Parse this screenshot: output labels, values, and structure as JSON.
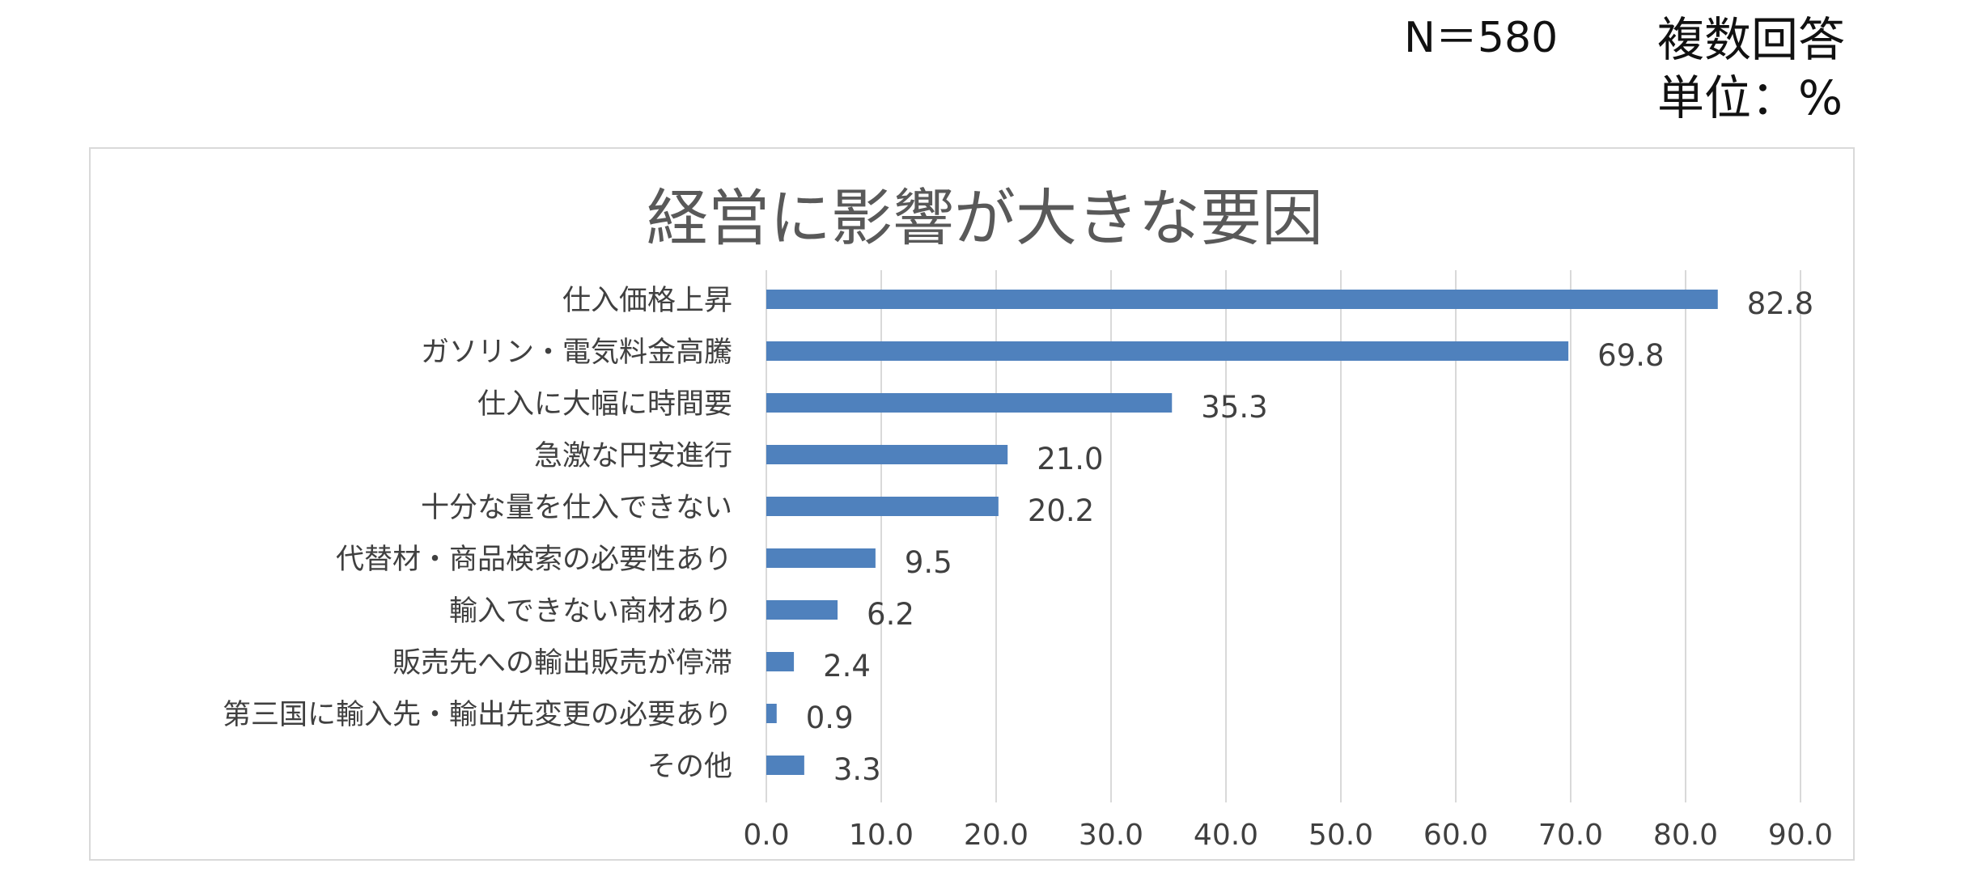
{
  "header": {
    "sample_size": "N＝580",
    "answer_type": "複数回答",
    "unit": "単位：%"
  },
  "colors": {
    "bar": "#4f81bd",
    "grid": "#d9d9d9",
    "text": "#404040"
  },
  "chart_data": {
    "type": "bar",
    "orientation": "horizontal",
    "title": "経営に影響が大きな要因",
    "categories": [
      "仕入価格上昇",
      "ガソリン・電気料金高騰",
      "仕入に大幅に時間要",
      "急激な円安進行",
      "十分な量を仕入できない",
      "代替材・商品検索の必要性あり",
      "輸入できない商材あり",
      "販売先への輸出販売が停滞",
      "第三国に輸入先・輸出先変更の必要あり",
      "その他"
    ],
    "values": [
      82.8,
      69.8,
      35.3,
      21.0,
      20.2,
      9.5,
      6.2,
      2.4,
      0.9,
      3.3
    ],
    "value_labels": [
      "82.8",
      "69.8",
      "35.3",
      "21.0",
      "20.2",
      "9.5",
      "6.2",
      "2.4",
      "0.9",
      "3.3"
    ],
    "x_ticks": [
      "0.0",
      "10.0",
      "20.0",
      "30.0",
      "40.0",
      "50.0",
      "60.0",
      "70.0",
      "80.0",
      "90.0"
    ],
    "xlim": [
      0,
      90
    ],
    "grid": true,
    "legend": "none"
  }
}
